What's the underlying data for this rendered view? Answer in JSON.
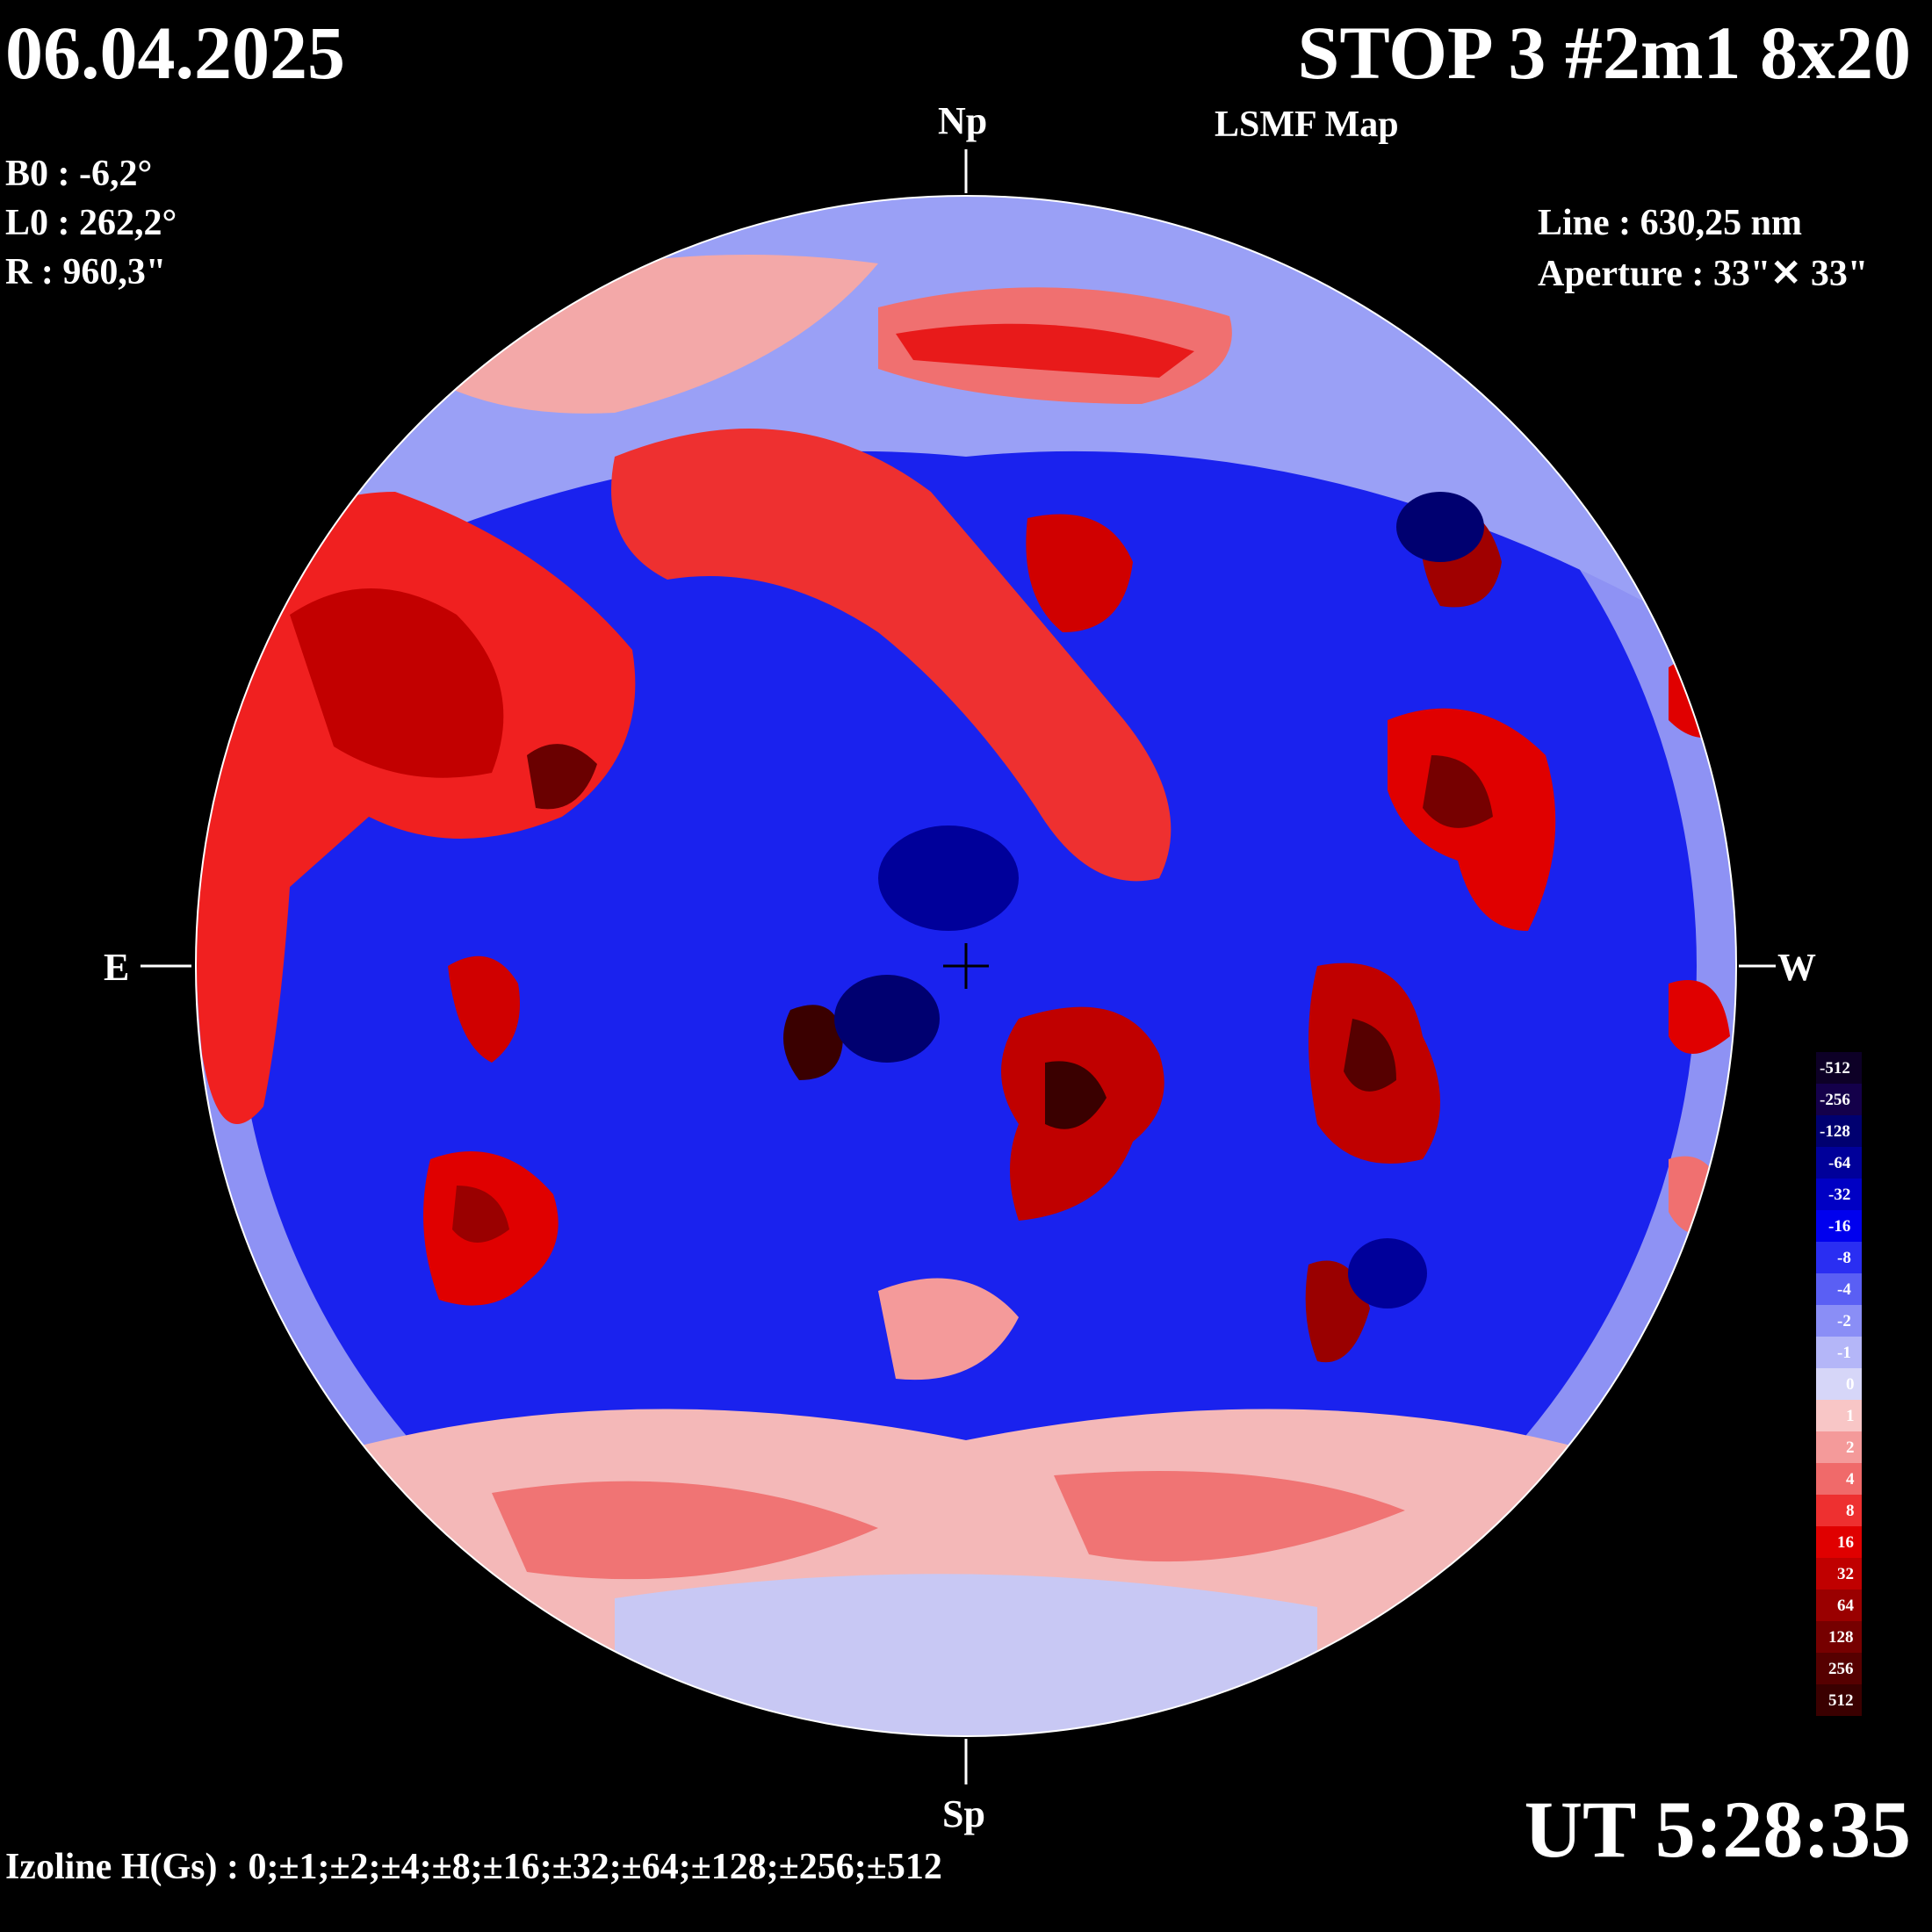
{
  "header": {
    "date": "06.04.2025",
    "title": "STOP 3 #2m1 8x20",
    "subtitle": "LSMF  Map"
  },
  "params": {
    "b0": "B0 : -6,2°",
    "l0": "L0 : 262,2°",
    "r": "R  : 960,3\""
  },
  "instrument": {
    "line": "Line :  630,25 nm",
    "aperture": "Aperture : 33\"✕ 33\""
  },
  "directions": {
    "north": "Np",
    "south": "Sp",
    "east": "E",
    "west": "W"
  },
  "time": "UT 5:28:35",
  "isolines": "Izoline H(Gs) : 0;±1;±2;±4;±8;±16;±32;±64;±128;±256;±512",
  "colors": {
    "background": "#000000",
    "negative_strong": "#1a0036",
    "negative": "#0000ee",
    "neutral": "#ffffff",
    "positive": "#ee0000",
    "positive_strong": "#3a0000"
  },
  "legend": [
    {
      "label": "-512",
      "color": "#0d0026"
    },
    {
      "label": "-256",
      "color": "#14004a"
    },
    {
      "label": "-128",
      "color": "#000070"
    },
    {
      "label": "-64",
      "color": "#00009a"
    },
    {
      "label": "-32",
      "color": "#0000c4"
    },
    {
      "label": "-16",
      "color": "#0000ee"
    },
    {
      "label": "-8",
      "color": "#2a2ef2"
    },
    {
      "label": "-4",
      "color": "#5a5ff4"
    },
    {
      "label": "-2",
      "color": "#8a8ef6"
    },
    {
      "label": "-1",
      "color": "#b4b6f8"
    },
    {
      "label": "0",
      "color": "#d6d6f8"
    },
    {
      "label": "1",
      "color": "#f8c6c6"
    },
    {
      "label": "2",
      "color": "#f49a9a"
    },
    {
      "label": "4",
      "color": "#f06a6a"
    },
    {
      "label": "8",
      "color": "#ee3030"
    },
    {
      "label": "16",
      "color": "#e00000"
    },
    {
      "label": "32",
      "color": "#c00000"
    },
    {
      "label": "64",
      "color": "#9a0000"
    },
    {
      "label": "128",
      "color": "#760000"
    },
    {
      "label": "256",
      "color": "#560000"
    },
    {
      "label": "512",
      "color": "#3a0000"
    }
  ],
  "regions": {
    "positive_patches": [
      {
        "name": "patch-east-upper"
      },
      {
        "name": "patch-east-limb"
      },
      {
        "name": "patch-north-arc"
      },
      {
        "name": "patch-north-center"
      },
      {
        "name": "patch-northwest"
      },
      {
        "name": "patch-west-upper"
      },
      {
        "name": "patch-center-south"
      },
      {
        "name": "patch-west-mid"
      },
      {
        "name": "patch-east-lower"
      },
      {
        "name": "patch-east-mid"
      },
      {
        "name": "patch-center-small"
      },
      {
        "name": "patch-southwest"
      },
      {
        "name": "patch-south-band"
      }
    ]
  }
}
